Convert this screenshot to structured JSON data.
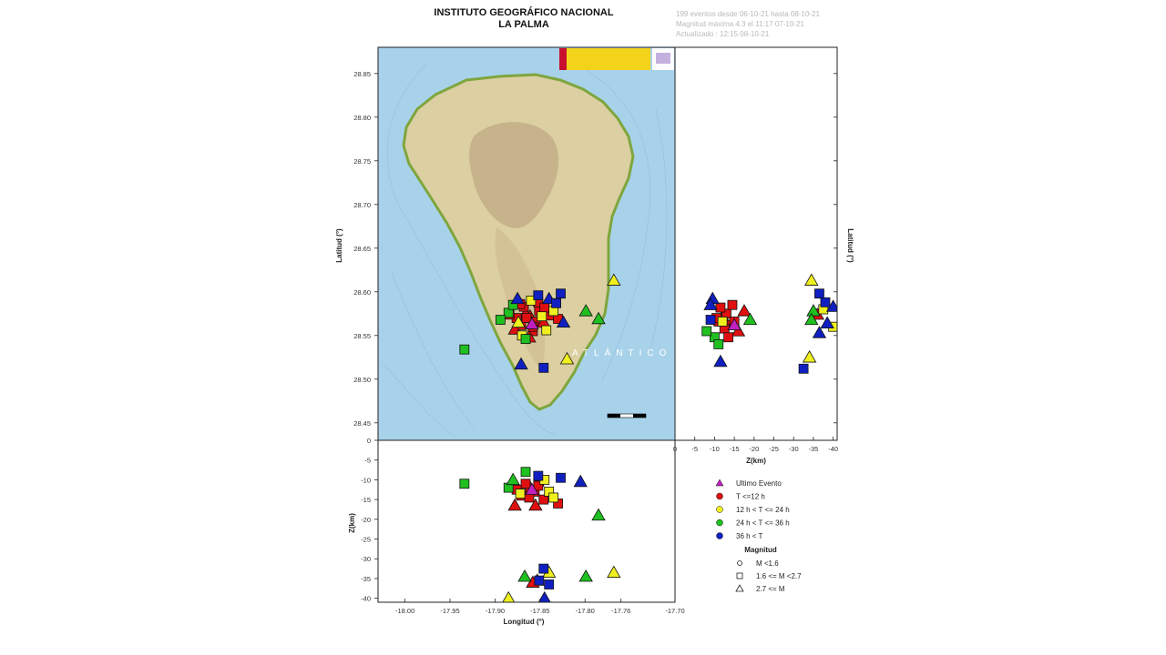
{
  "header": {
    "title_line1": "INSTITUTO GEOGRÁFICO NACIONAL",
    "title_line2": "LA PALMA",
    "info_line1": "199 eventos desde 06-10-21 hasta 08-10-21",
    "info_line2": "Magnitud máxima 4.3 el 11:17 07-10-21",
    "info_line3": "Actualizado : 12:15 08-10-21"
  },
  "map_labels": {
    "sea_label": "ATLÁNTICO"
  },
  "chart_data": [
    {
      "type": "scatter",
      "panel": "map",
      "xlim": [
        -18.03,
        -17.7
      ],
      "ylim": [
        28.43,
        28.88
      ],
      "ylabel": "Latitud (°)",
      "y_ticks": [
        28.45,
        28.5,
        28.55,
        28.6,
        28.65,
        28.7,
        28.75,
        28.8,
        28.85
      ],
      "y_tick_labels": [
        "28.45",
        "28.50",
        "28.55",
        "28.60",
        "28.65",
        "28.70",
        "28.75",
        "28.80",
        "28.85"
      ],
      "points": [
        {
          "x": -17.861,
          "y": 28.572,
          "cls": "A",
          "mag": "L"
        },
        {
          "x": -17.866,
          "y": 28.575,
          "cls": "A",
          "mag": "L"
        },
        {
          "x": -17.856,
          "y": 28.566,
          "cls": "A",
          "mag": "M"
        },
        {
          "x": -17.871,
          "y": 28.562,
          "cls": "A",
          "mag": "M"
        },
        {
          "x": -17.851,
          "y": 28.578,
          "cls": "A",
          "mag": "M"
        },
        {
          "x": -17.876,
          "y": 28.57,
          "cls": "A",
          "mag": "M"
        },
        {
          "x": -17.846,
          "y": 28.565,
          "cls": "A",
          "mag": "L"
        },
        {
          "x": -17.858,
          "y": 28.555,
          "cls": "A",
          "mag": "M"
        },
        {
          "x": -17.868,
          "y": 28.583,
          "cls": "A",
          "mag": "M"
        },
        {
          "x": -17.84,
          "y": 28.573,
          "cls": "A",
          "mag": "M"
        },
        {
          "x": -17.878,
          "y": 28.557,
          "cls": "A",
          "mag": "L"
        },
        {
          "x": -17.852,
          "y": 28.588,
          "cls": "A",
          "mag": "M"
        },
        {
          "x": -17.83,
          "y": 28.569,
          "cls": "A",
          "mag": "M"
        },
        {
          "x": -17.884,
          "y": 28.574,
          "cls": "A",
          "mag": "M"
        },
        {
          "x": -17.862,
          "y": 28.548,
          "cls": "A",
          "mag": "L"
        },
        {
          "x": -17.845,
          "y": 28.582,
          "cls": "A",
          "mag": "M"
        },
        {
          "x": -17.872,
          "y": 28.586,
          "cls": "A",
          "mag": "M"
        },
        {
          "x": -17.858,
          "y": 28.56,
          "cls": "A",
          "mag": "M"
        },
        {
          "x": -17.865,
          "y": 28.57,
          "cls": "A",
          "mag": "M"
        },
        {
          "x": -17.859,
          "y": 28.563,
          "cls": "U",
          "mag": "L"
        },
        {
          "x": -17.848,
          "y": 28.572,
          "cls": "B",
          "mag": "M"
        },
        {
          "x": -17.843,
          "y": 28.556,
          "cls": "B",
          "mag": "M"
        },
        {
          "x": -17.874,
          "y": 28.565,
          "cls": "B",
          "mag": "L"
        },
        {
          "x": -17.835,
          "y": 28.578,
          "cls": "B",
          "mag": "M"
        },
        {
          "x": -17.86,
          "y": 28.59,
          "cls": "B",
          "mag": "M"
        },
        {
          "x": -17.82,
          "y": 28.523,
          "cls": "B",
          "mag": "L"
        },
        {
          "x": -17.768,
          "y": 28.613,
          "cls": "B",
          "mag": "L"
        },
        {
          "x": -17.87,
          "y": 28.55,
          "cls": "B",
          "mag": "M"
        },
        {
          "x": -17.885,
          "y": 28.576,
          "cls": "C",
          "mag": "M"
        },
        {
          "x": -17.866,
          "y": 28.546,
          "cls": "C",
          "mag": "M"
        },
        {
          "x": -17.88,
          "y": 28.585,
          "cls": "C",
          "mag": "M"
        },
        {
          "x": -17.894,
          "y": 28.568,
          "cls": "C",
          "mag": "M"
        },
        {
          "x": -17.799,
          "y": 28.578,
          "cls": "C",
          "mag": "L"
        },
        {
          "x": -17.785,
          "y": 28.569,
          "cls": "C",
          "mag": "L"
        },
        {
          "x": -17.934,
          "y": 28.534,
          "cls": "C",
          "mag": "M"
        },
        {
          "x": -17.875,
          "y": 28.592,
          "cls": "D",
          "mag": "L"
        },
        {
          "x": -17.84,
          "y": 28.592,
          "cls": "D",
          "mag": "L"
        },
        {
          "x": -17.827,
          "y": 28.598,
          "cls": "D",
          "mag": "M"
        },
        {
          "x": -17.832,
          "y": 28.587,
          "cls": "D",
          "mag": "M"
        },
        {
          "x": -17.852,
          "y": 28.596,
          "cls": "D",
          "mag": "M"
        },
        {
          "x": -17.871,
          "y": 28.517,
          "cls": "D",
          "mag": "L"
        },
        {
          "x": -17.846,
          "y": 28.513,
          "cls": "D",
          "mag": "M"
        },
        {
          "x": -17.824,
          "y": 28.565,
          "cls": "D",
          "mag": "L"
        }
      ],
      "map_scale_bar": true
    },
    {
      "type": "scatter",
      "panel": "lat-depth",
      "xlabel": "Z(km)",
      "ylabel": "Latitud (°)",
      "xlim": [
        0,
        -41
      ],
      "ylim": [
        28.43,
        28.88
      ],
      "x_ticks": [
        0,
        -5,
        -10,
        -15,
        -20,
        -25,
        -30,
        -35,
        -40
      ],
      "x_tick_labels": [
        "0",
        "-5",
        "-10",
        "-15",
        "-20",
        "-25",
        "-30",
        "-35",
        "-40"
      ],
      "points": [
        {
          "x": -12.0,
          "y": 28.572,
          "cls": "A",
          "mag": "L"
        },
        {
          "x": -11.0,
          "y": 28.566,
          "cls": "A",
          "mag": "M"
        },
        {
          "x": -13.0,
          "y": 28.575,
          "cls": "A",
          "mag": "M"
        },
        {
          "x": -14.0,
          "y": 28.562,
          "cls": "A",
          "mag": "M"
        },
        {
          "x": -10.5,
          "y": 28.57,
          "cls": "A",
          "mag": "M"
        },
        {
          "x": -15.0,
          "y": 28.566,
          "cls": "A",
          "mag": "M"
        },
        {
          "x": -12.5,
          "y": 28.558,
          "cls": "A",
          "mag": "M"
        },
        {
          "x": -16.0,
          "y": 28.555,
          "cls": "A",
          "mag": "L"
        },
        {
          "x": -11.5,
          "y": 28.582,
          "cls": "A",
          "mag": "M"
        },
        {
          "x": -17.5,
          "y": 28.578,
          "cls": "A",
          "mag": "L"
        },
        {
          "x": -13.5,
          "y": 28.548,
          "cls": "A",
          "mag": "M"
        },
        {
          "x": -14.5,
          "y": 28.585,
          "cls": "A",
          "mag": "M"
        },
        {
          "x": -36.0,
          "y": 28.574,
          "cls": "A",
          "mag": "L"
        },
        {
          "x": -15.0,
          "y": 28.562,
          "cls": "U",
          "mag": "L"
        },
        {
          "x": -34.5,
          "y": 28.613,
          "cls": "B",
          "mag": "L"
        },
        {
          "x": -34.0,
          "y": 28.525,
          "cls": "B",
          "mag": "L"
        },
        {
          "x": -37.5,
          "y": 28.58,
          "cls": "B",
          "mag": "M"
        },
        {
          "x": -40.0,
          "y": 28.56,
          "cls": "B",
          "mag": "M"
        },
        {
          "x": -12.0,
          "y": 28.566,
          "cls": "B",
          "mag": "M"
        },
        {
          "x": -10.0,
          "y": 28.548,
          "cls": "C",
          "mag": "M"
        },
        {
          "x": -11.0,
          "y": 28.54,
          "cls": "C",
          "mag": "M"
        },
        {
          "x": -19.0,
          "y": 28.568,
          "cls": "C",
          "mag": "L"
        },
        {
          "x": -35.0,
          "y": 28.578,
          "cls": "C",
          "mag": "L"
        },
        {
          "x": -34.5,
          "y": 28.568,
          "cls": "C",
          "mag": "L"
        },
        {
          "x": -8.0,
          "y": 28.555,
          "cls": "C",
          "mag": "M"
        },
        {
          "x": -9.5,
          "y": 28.592,
          "cls": "D",
          "mag": "L"
        },
        {
          "x": -9.0,
          "y": 28.585,
          "cls": "D",
          "mag": "L"
        },
        {
          "x": -9.0,
          "y": 28.568,
          "cls": "D",
          "mag": "M"
        },
        {
          "x": -11.5,
          "y": 28.52,
          "cls": "D",
          "mag": "L"
        },
        {
          "x": -36.5,
          "y": 28.598,
          "cls": "D",
          "mag": "M"
        },
        {
          "x": -38.0,
          "y": 28.588,
          "cls": "D",
          "mag": "M"
        },
        {
          "x": -40.0,
          "y": 28.583,
          "cls": "D",
          "mag": "L"
        },
        {
          "x": -38.5,
          "y": 28.564,
          "cls": "D",
          "mag": "L"
        },
        {
          "x": -36.5,
          "y": 28.553,
          "cls": "D",
          "mag": "L"
        },
        {
          "x": -32.5,
          "y": 28.512,
          "cls": "D",
          "mag": "M"
        }
      ]
    },
    {
      "type": "scatter",
      "panel": "depth-lon",
      "xlabel": "Longitud (°)",
      "ylabel": "Z(km)",
      "xlim": [
        -18.03,
        -17.7
      ],
      "ylim": [
        -41,
        0
      ],
      "x_ticks": [
        -18.0,
        -17.95,
        -17.9,
        -17.85,
        -17.8,
        -17.76,
        -17.7
      ],
      "x_tick_labels": [
        "-18.00",
        "-17.95",
        "-17.90",
        "-17.85",
        "-17.80",
        "-17.76",
        "-17.70"
      ],
      "y_ticks": [
        0,
        -5,
        -10,
        -15,
        -20,
        -25,
        -30,
        -35,
        -40
      ],
      "y_tick_labels": [
        "0",
        "-5",
        "-10",
        "-15",
        "-20",
        "-25",
        "-30",
        "-35",
        "-40"
      ],
      "points": [
        {
          "x": -17.861,
          "y": -12.0,
          "cls": "A",
          "mag": "L"
        },
        {
          "x": -17.866,
          "y": -11.0,
          "cls": "A",
          "mag": "M"
        },
        {
          "x": -17.856,
          "y": -13.0,
          "cls": "A",
          "mag": "M"
        },
        {
          "x": -17.871,
          "y": -14.0,
          "cls": "A",
          "mag": "M"
        },
        {
          "x": -17.851,
          "y": -10.5,
          "cls": "A",
          "mag": "M"
        },
        {
          "x": -17.846,
          "y": -15.0,
          "cls": "A",
          "mag": "M"
        },
        {
          "x": -17.876,
          "y": -12.5,
          "cls": "A",
          "mag": "M"
        },
        {
          "x": -17.878,
          "y": -16.5,
          "cls": "A",
          "mag": "L"
        },
        {
          "x": -17.852,
          "y": -11.5,
          "cls": "A",
          "mag": "M"
        },
        {
          "x": -17.855,
          "y": -16.5,
          "cls": "A",
          "mag": "L"
        },
        {
          "x": -17.83,
          "y": -16.0,
          "cls": "A",
          "mag": "M"
        },
        {
          "x": -17.862,
          "y": -14.5,
          "cls": "A",
          "mag": "M"
        },
        {
          "x": -17.853,
          "y": -35.5,
          "cls": "A",
          "mag": "L"
        },
        {
          "x": -17.858,
          "y": -36.0,
          "cls": "A",
          "mag": "L"
        },
        {
          "x": -17.859,
          "y": -12.5,
          "cls": "U",
          "mag": "L"
        },
        {
          "x": -17.872,
          "y": -13.5,
          "cls": "B",
          "mag": "M"
        },
        {
          "x": -17.84,
          "y": -13.0,
          "cls": "B",
          "mag": "M"
        },
        {
          "x": -17.835,
          "y": -14.5,
          "cls": "B",
          "mag": "M"
        },
        {
          "x": -17.768,
          "y": -33.5,
          "cls": "B",
          "mag": "L"
        },
        {
          "x": -17.84,
          "y": -33.5,
          "cls": "B",
          "mag": "L"
        },
        {
          "x": -17.885,
          "y": -40.0,
          "cls": "B",
          "mag": "L"
        },
        {
          "x": -17.845,
          "y": -10.0,
          "cls": "B",
          "mag": "M"
        },
        {
          "x": -17.934,
          "y": -11.0,
          "cls": "C",
          "mag": "M"
        },
        {
          "x": -17.885,
          "y": -12.0,
          "cls": "C",
          "mag": "M"
        },
        {
          "x": -17.866,
          "y": -8.0,
          "cls": "C",
          "mag": "M"
        },
        {
          "x": -17.785,
          "y": -19.0,
          "cls": "C",
          "mag": "L"
        },
        {
          "x": -17.867,
          "y": -34.5,
          "cls": "C",
          "mag": "L"
        },
        {
          "x": -17.799,
          "y": -34.5,
          "cls": "C",
          "mag": "L"
        },
        {
          "x": -17.88,
          "y": -10.0,
          "cls": "C",
          "mag": "L"
        },
        {
          "x": -17.852,
          "y": -9.0,
          "cls": "D",
          "mag": "M"
        },
        {
          "x": -17.827,
          "y": -9.5,
          "cls": "D",
          "mag": "M"
        },
        {
          "x": -17.805,
          "y": -10.5,
          "cls": "D",
          "mag": "L"
        },
        {
          "x": -17.846,
          "y": -32.5,
          "cls": "D",
          "mag": "M"
        },
        {
          "x": -17.851,
          "y": -35.5,
          "cls": "D",
          "mag": "M"
        },
        {
          "x": -17.84,
          "y": -36.5,
          "cls": "D",
          "mag": "M"
        },
        {
          "x": -17.845,
          "y": -40.0,
          "cls": "D",
          "mag": "L"
        }
      ]
    }
  ],
  "legend": {
    "time_items": [
      {
        "cls": "U",
        "label": "Ultimo Evento"
      },
      {
        "cls": "A",
        "label": "T <=12 h"
      },
      {
        "cls": "B",
        "label": "12 h  < T <= 24 h"
      },
      {
        "cls": "C",
        "label": "24 h  < T <= 36 h"
      },
      {
        "cls": "D",
        "label": "36 h <  T"
      }
    ],
    "mag_title": "Magnitud",
    "mag_items": [
      {
        "shape": "circle",
        "label": "M <1.6"
      },
      {
        "shape": "square",
        "label": "1.6 <= M <2.7"
      },
      {
        "shape": "triangle",
        "label": "2.7 <= M"
      }
    ]
  },
  "colors": {
    "U": "#c020c0",
    "A": "#e01010",
    "B": "#f0f020",
    "C": "#20c020",
    "D": "#1020c0",
    "sea": "#a8d2ea",
    "land": "#d9cfa3",
    "coast": "#7ea63e"
  }
}
